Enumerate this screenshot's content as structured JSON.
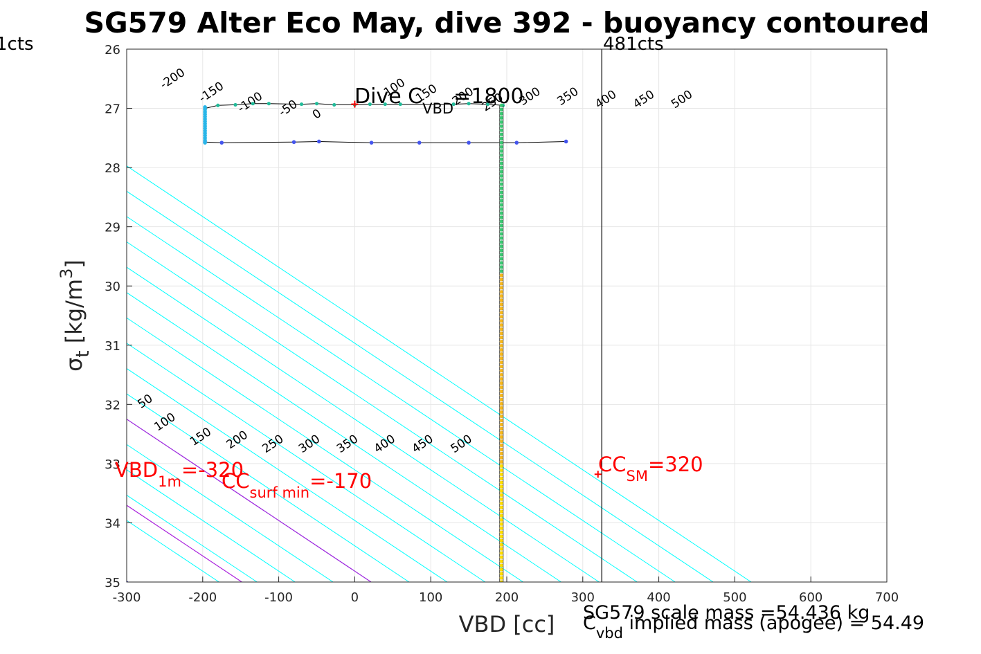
{
  "chart_data": {
    "type": "scatter",
    "title": "SG579 Alter Eco May, dive 392 - buoyancy contoured",
    "xlabel": "VBD [cc]",
    "ylabel": {
      "main": "σ",
      "sub": "t",
      "units": " [kg/m",
      "sup": "3",
      "close": "]"
    },
    "xlim": [
      -300,
      700
    ],
    "ylim": [
      26,
      35
    ],
    "y_reversed": true,
    "grid": true,
    "x_ticks": [
      -300,
      -200,
      -100,
      0,
      100,
      200,
      300,
      400,
      500,
      600,
      700
    ],
    "y_ticks": [
      26,
      27,
      28,
      29,
      30,
      31,
      32,
      33,
      34,
      35
    ],
    "contour_slope_cc_per_sigma": 116.9,
    "contours": {
      "values": [
        -200,
        -150,
        -100,
        -50,
        0,
        50,
        100,
        150,
        200,
        250,
        300,
        350,
        400,
        450,
        500
      ],
      "color": "#00ffff",
      "highlight": [
        {
          "value": -320,
          "color": "#0000cc"
        },
        {
          "value": -170,
          "color": "#aa22dd"
        },
        {
          "value": 0,
          "color": "#aa22dd"
        }
      ],
      "x_at_sigma35_for_zero": 21.5
    },
    "upper_contour_labels": [
      {
        "text": "-200",
        "x": -237,
        "y": 26.55
      },
      {
        "text": "-150",
        "x": -186,
        "y": 26.78
      },
      {
        "text": "-100",
        "x": -135,
        "y": 26.95
      },
      {
        "text": "-50",
        "x": -85,
        "y": 27.05
      },
      {
        "text": "0",
        "x": -47,
        "y": 27.15
      },
      {
        "text": "100",
        "x": 55,
        "y": 26.7
      },
      {
        "text": "150",
        "x": 97,
        "y": 26.8
      },
      {
        "text": "200",
        "x": 145,
        "y": 26.85
      },
      {
        "text": "250",
        "x": 184,
        "y": 26.95
      },
      {
        "text": "300",
        "x": 233,
        "y": 26.85
      },
      {
        "text": "350",
        "x": 283,
        "y": 26.85
      },
      {
        "text": "400",
        "x": 333,
        "y": 26.9
      },
      {
        "text": "450",
        "x": 383,
        "y": 26.9
      },
      {
        "text": "500",
        "x": 433,
        "y": 26.9
      }
    ],
    "lower_contour_labels": [
      {
        "text": "50",
        "x": -273,
        "y": 32.0
      },
      {
        "text": "100",
        "x": -247,
        "y": 32.35
      },
      {
        "text": "150",
        "x": -200,
        "y": 32.6
      },
      {
        "text": "200",
        "x": -152,
        "y": 32.65
      },
      {
        "text": "250",
        "x": -105,
        "y": 32.72
      },
      {
        "text": "300",
        "x": -57,
        "y": 32.72
      },
      {
        "text": "350",
        "x": -7,
        "y": 32.72
      },
      {
        "text": "400",
        "x": 42,
        "y": 32.72
      },
      {
        "text": "450",
        "x": 92,
        "y": 32.72
      },
      {
        "text": "500",
        "x": 143,
        "y": 32.72
      }
    ],
    "vertical_lines": [
      {
        "x": 325,
        "label": "481cts",
        "color": "#000000"
      }
    ],
    "left_edge_label": "1cts",
    "trace_dive": {
      "color": "#000000",
      "points": [
        [
          -197,
          27.57
        ],
        [
          -175,
          27.58
        ],
        [
          -80,
          27.57
        ],
        [
          -47,
          27.56
        ],
        [
          22,
          27.58
        ],
        [
          85,
          27.58
        ],
        [
          150,
          27.58
        ],
        [
          213,
          27.58
        ],
        [
          278,
          27.56
        ]
      ]
    },
    "trace_top": {
      "color": "#000000",
      "points": [
        [
          -197,
          27.0
        ],
        [
          -180,
          26.95
        ],
        [
          -157,
          26.94
        ],
        [
          -134,
          26.92
        ],
        [
          -113,
          26.92
        ],
        [
          -70,
          26.93
        ],
        [
          -50,
          26.92
        ],
        [
          -27,
          26.94
        ],
        [
          0,
          26.94
        ],
        [
          20,
          26.93
        ],
        [
          40,
          26.93
        ],
        [
          60,
          26.93
        ],
        [
          130,
          26.93
        ],
        [
          150,
          26.92
        ],
        [
          175,
          26.93
        ],
        [
          195,
          26.95
        ]
      ]
    },
    "left_column_points": {
      "x": -197,
      "y_from": 26.98,
      "y_to": 27.58,
      "color": "#29b6e8"
    },
    "vertical_trace": {
      "x": 193,
      "y_from": 26.95,
      "y_to": 35,
      "colors": [
        "#3cc873",
        "#f5b820",
        "#ffdd00"
      ]
    },
    "markers": [
      {
        "type": "plus",
        "x": 0,
        "y": 26.93,
        "color": "#ff0000"
      },
      {
        "type": "plus",
        "x": 320,
        "y": 33.18,
        "color": "#ff0000"
      }
    ],
    "annotations": {
      "dive_cvbd": {
        "pre": "Dive C",
        "sub": "VBD",
        "post": "=1800",
        "x": 0,
        "y": 26.97
      },
      "vbd_1m": {
        "pre": "VBD",
        "sub": "1m",
        "post": "=-320",
        "x": -315,
        "y": 33.18
      },
      "cc_surf_min": {
        "pre": "CC",
        "sub": "surf min",
        "post": "=-170",
        "x": -175,
        "y": 33.35
      },
      "cc_sm": {
        "pre": "CC",
        "sub": "SM",
        "post": "=320",
        "x": 324,
        "y": 33.11
      }
    },
    "footer": {
      "scale_mass": "SG579 scale mass =54.436 kg",
      "implied_pre": "C",
      "implied_sub": "vbd",
      "implied_post": " implied mass (apogee) = 54.49"
    }
  }
}
